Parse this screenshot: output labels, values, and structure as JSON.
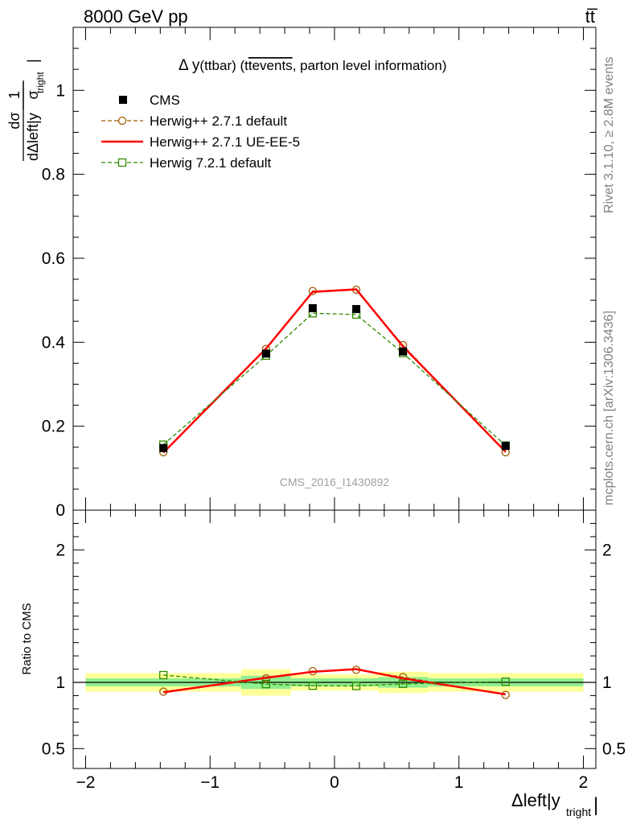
{
  "header": {
    "left": "8000 GeV pp",
    "right": "tt̅"
  },
  "side_labels": {
    "rivet": "Rivet 3.1.10, ≥ 2.8M events",
    "mcplots": "mcplots.cern.ch [arXiv:1306.3436]"
  },
  "chart_data": [
    {
      "type": "line",
      "title_prefix": "Δ y",
      "title_main": "(ttbar) (t",
      "title_overlined": "tevents",
      "title_suffix": ", parton level information)",
      "watermark": "CMS_2016_I1430892",
      "ylabel": {
        "numerator": "1",
        "denominator": "σ",
        "d_num": "dσ",
        "d_den": "dΔleft|y",
        "sub": "tright",
        "bar": "|"
      },
      "xlim": [
        -2.1,
        2.1
      ],
      "ylim": [
        0,
        1.15
      ],
      "ytick_values": [
        0,
        0.2,
        0.4,
        0.6,
        0.8,
        1
      ],
      "ytick_labels": [
        "0",
        "0.2",
        "0.4",
        "0.6",
        "0.8",
        "1"
      ],
      "x": [
        -1.375,
        -0.55,
        -0.175,
        0.175,
        0.55,
        1.375
      ],
      "data_points": {
        "name": "CMS",
        "y": [
          0.148,
          0.373,
          0.481,
          0.479,
          0.378,
          0.153
        ]
      },
      "series": [
        {
          "name": "Herwig++ 2.7.1 default",
          "color": "#a05a00",
          "marker": "circle",
          "dash": "5,3",
          "values": [
            0.138,
            0.384,
            0.522,
            0.525,
            0.393,
            0.138
          ]
        },
        {
          "name": "Herwig++ 2.7.1 UE-EE-5",
          "color": "#ff0000",
          "marker": "none",
          "dash": "",
          "values": [
            0.137,
            0.385,
            0.52,
            0.526,
            0.39,
            0.139
          ]
        },
        {
          "name": "Herwig 7.2.1 default",
          "color": "#2e8b00",
          "marker": "square",
          "dash": "5,3",
          "values": [
            0.156,
            0.368,
            0.469,
            0.466,
            0.374,
            0.154
          ]
        }
      ],
      "legend": "top-left"
    },
    {
      "type": "line",
      "ylabel": "Ratio to CMS",
      "xlabel_main": "Δleft|y",
      "xlabel_sub": "tright",
      "xlabel_bar": "|",
      "xlim": [
        -2.1,
        2.1
      ],
      "ylim": [
        0.35,
        2.3
      ],
      "ytick_values": [
        0.5,
        1,
        2
      ],
      "ytick_labels": [
        "0.5",
        "1",
        "2"
      ],
      "xtick_values": [
        -2,
        -1,
        0,
        1,
        2
      ],
      "xtick_labels": [
        "−2",
        "−1",
        "0",
        "1",
        "2"
      ],
      "band_edges": [
        -2.0,
        -0.75,
        -0.35,
        0.0,
        0.35,
        0.75,
        2.0
      ],
      "band_inner": [
        0.03,
        0.05,
        0.03,
        0.03,
        0.04,
        0.03
      ],
      "band_outer": [
        0.07,
        0.1,
        0.06,
        0.06,
        0.08,
        0.07
      ],
      "x": [
        -1.375,
        -0.55,
        -0.175,
        0.175,
        0.55,
        1.375
      ],
      "series": [
        {
          "name": "Herwig++ 2.7.1 default",
          "values": [
            0.93,
            1.03,
            1.085,
            1.095,
            1.04,
            0.905
          ]
        },
        {
          "name": "Herwig++ 2.7.1 UE-EE-5",
          "values": [
            0.925,
            1.035,
            1.08,
            1.1,
            1.03,
            0.91
          ]
        },
        {
          "name": "Herwig 7.2.1 default",
          "values": [
            1.055,
            0.987,
            0.975,
            0.973,
            0.989,
            1.005
          ]
        }
      ]
    }
  ]
}
